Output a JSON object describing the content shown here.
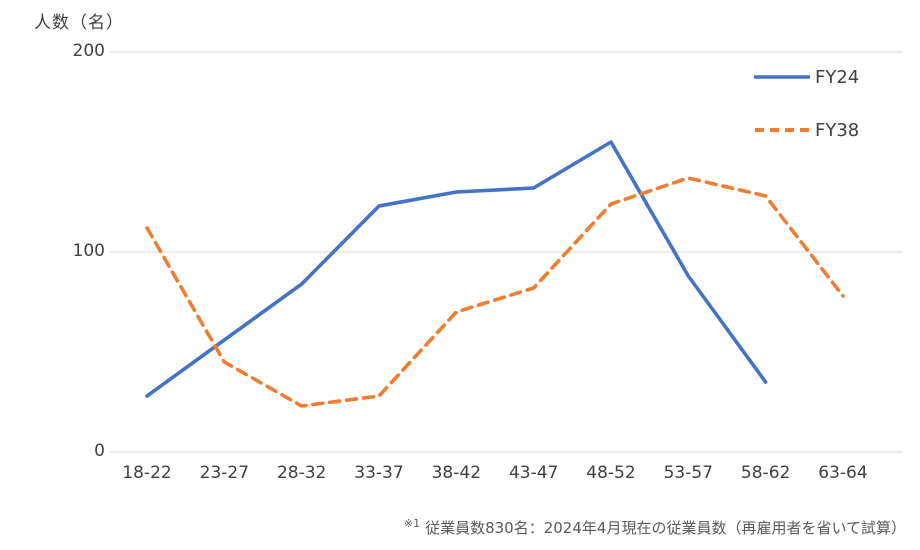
{
  "chart_data": {
    "type": "line",
    "title": "",
    "ylabel": "人数（名）",
    "xlabel": "",
    "categories": [
      "18-22",
      "23-27",
      "28-32",
      "33-37",
      "38-42",
      "43-47",
      "48-52",
      "53-57",
      "58-62",
      "63-64"
    ],
    "series": [
      {
        "name": "FY24",
        "style": "solid",
        "color": "#4472C4",
        "values": [
          28,
          56,
          84,
          123,
          130,
          132,
          155,
          88,
          35,
          null
        ]
      },
      {
        "name": "FY38",
        "style": "dashed",
        "color": "#ED7D31",
        "values": [
          112,
          45,
          23,
          28,
          70,
          82,
          124,
          137,
          128,
          78
        ]
      }
    ],
    "y_ticks": [
      0,
      100,
      200
    ],
    "ylim": [
      0,
      200
    ],
    "grid": true,
    "gridline_color": "#D9D9D9",
    "legend_position": "top-right"
  },
  "footnote": {
    "marker": "※1",
    "text": "従業員数830名：2024年4月現在の従業員数（再雇用者を省いて試算）"
  }
}
